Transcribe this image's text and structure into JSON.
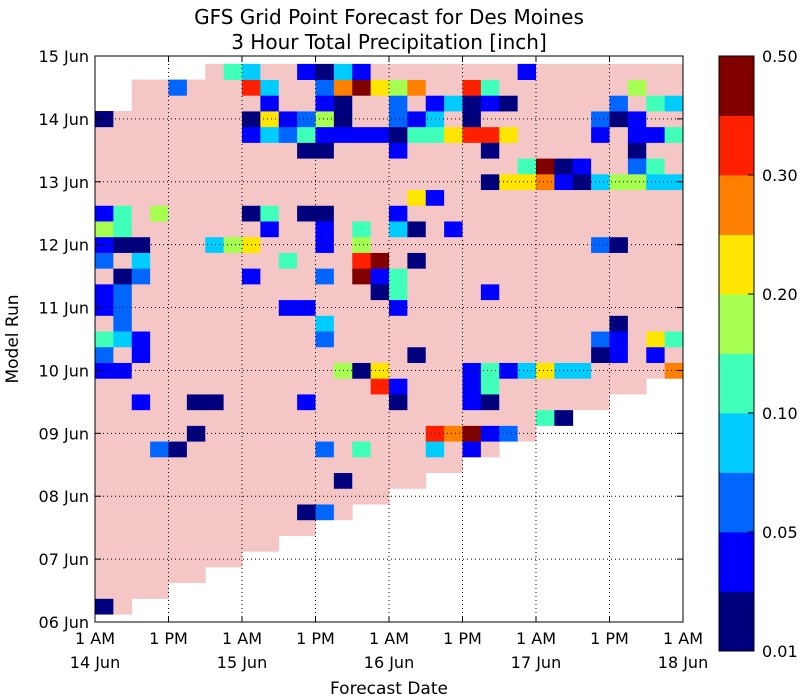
{
  "chart_data": {
    "type": "heatmap",
    "title": "GFS Grid Point Forecast for Des Moines",
    "subtitle": "3 Hour Total Precipitation [inch]",
    "x_label": "Forecast Date",
    "y_label": "Model Run",
    "xlim": [
      0,
      96
    ],
    "xticks": [
      {
        "value": 0,
        "label": "1 AM"
      },
      {
        "value": 12,
        "label": "1 PM"
      },
      {
        "value": 24,
        "label": "1 AM"
      },
      {
        "value": 36,
        "label": "1 PM"
      },
      {
        "value": 48,
        "label": "1 AM"
      },
      {
        "value": 60,
        "label": "1 PM"
      },
      {
        "value": 72,
        "label": "1 AM"
      },
      {
        "value": 84,
        "label": "1 PM"
      },
      {
        "value": 96,
        "label": "1 AM"
      }
    ],
    "x_date_labels": [
      {
        "value": 0,
        "label": "14 Jun"
      },
      {
        "value": 24,
        "label": "15 Jun"
      },
      {
        "value": 48,
        "label": "16 Jun"
      },
      {
        "value": 72,
        "label": "17 Jun"
      },
      {
        "value": 96,
        "label": "18 Jun"
      }
    ],
    "ylim": [
      0,
      9
    ],
    "yticks": [
      {
        "value": 0,
        "label": "06 Jun"
      },
      {
        "value": 1,
        "label": "07 Jun"
      },
      {
        "value": 2,
        "label": "08 Jun"
      },
      {
        "value": 3,
        "label": "09 Jun"
      },
      {
        "value": 4,
        "label": "10 Jun"
      },
      {
        "value": 5,
        "label": "11 Jun"
      },
      {
        "value": 6,
        "label": "12 Jun"
      },
      {
        "value": 7,
        "label": "13 Jun"
      },
      {
        "value": 8,
        "label": "14 Jun"
      },
      {
        "value": 9,
        "label": "15 Jun"
      }
    ],
    "grid": true,
    "x": [
      1.5,
      4.5,
      7.5,
      10.5,
      13.5,
      16.5,
      19.5,
      22.5,
      25.5,
      28.5,
      31.5,
      34.5,
      37.5,
      40.5,
      43.5,
      46.5,
      49.5,
      52.5,
      55.5,
      58.5,
      61.5,
      64.5,
      67.5,
      70.5,
      73.5,
      76.5,
      79.5,
      82.5,
      85.5,
      88.5,
      91.5,
      94.5
    ],
    "y": [
      0.25,
      0.5,
      0.75,
      1,
      1.25,
      1.5,
      1.75,
      2,
      2.25,
      2.5,
      2.75,
      3,
      3.25,
      3.5,
      3.75,
      4,
      4.25,
      4.5,
      4.75,
      5,
      5.25,
      5.5,
      5.75,
      6,
      6.25,
      6.5,
      6.75,
      7,
      7.25,
      7.5,
      7.75,
      8,
      8.25,
      8.5,
      8.75
    ],
    "levels": [
      0.01,
      0.025,
      0.05,
      0.075,
      0.1,
      0.15,
      0.2,
      0.25,
      0.3,
      0.4,
      0.5
    ],
    "colors": [
      "#00007f",
      "#0000ff",
      "#0066ff",
      "#00ccff",
      "#40ffb8",
      "#a6ff50",
      "#ffe600",
      "#ff8000",
      "#ff2000",
      "#800000"
    ],
    "under_color": "#f5c6c6",
    "colorbar_ticks": [
      0.01,
      0.05,
      {
        "value": 0.1,
        "label": "0.10"
      },
      {
        "value": 0.2,
        "label": "0.20"
      },
      {
        "value": 0.3,
        "label": "0.30"
      },
      {
        "value": 0.5,
        "label": "0.50"
      }
    ],
    "z": [
      [
        0.015,
        0,
        null,
        null,
        null,
        null,
        null,
        null,
        null,
        null,
        null,
        null,
        null,
        null,
        null,
        null,
        null,
        null,
        null,
        null,
        null,
        null,
        null,
        null,
        null,
        null,
        null,
        null,
        null,
        null,
        null,
        null
      ],
      [
        0,
        0,
        0,
        0,
        null,
        null,
        null,
        null,
        null,
        null,
        null,
        null,
        null,
        null,
        null,
        null,
        null,
        null,
        null,
        null,
        null,
        null,
        null,
        null,
        null,
        null,
        null,
        null,
        null,
        null,
        null,
        null
      ],
      [
        0,
        0,
        0,
        0,
        0,
        0,
        null,
        null,
        null,
        null,
        null,
        null,
        null,
        null,
        null,
        null,
        null,
        null,
        null,
        null,
        null,
        null,
        null,
        null,
        null,
        null,
        null,
        null,
        null,
        null,
        null,
        null
      ],
      [
        0,
        0,
        0,
        0,
        0,
        0,
        0,
        0,
        null,
        null,
        null,
        null,
        null,
        null,
        null,
        null,
        null,
        null,
        null,
        null,
        null,
        null,
        null,
        null,
        null,
        null,
        null,
        null,
        null,
        null,
        null,
        null
      ],
      [
        0,
        0,
        0,
        0,
        0,
        0,
        0,
        0,
        0,
        0,
        null,
        null,
        null,
        null,
        null,
        null,
        null,
        null,
        null,
        null,
        null,
        null,
        null,
        null,
        null,
        null,
        null,
        null,
        null,
        null,
        null,
        null
      ],
      [
        0,
        0,
        0,
        0,
        0,
        0,
        0,
        0,
        0,
        0,
        0,
        0,
        null,
        null,
        null,
        null,
        null,
        null,
        null,
        null,
        null,
        null,
        null,
        null,
        null,
        null,
        null,
        null,
        null,
        null,
        null,
        null
      ],
      [
        0,
        0,
        0,
        0,
        0,
        0,
        0,
        0,
        0,
        0,
        0,
        0.015,
        0.06,
        0,
        null,
        null,
        null,
        null,
        null,
        null,
        null,
        null,
        null,
        null,
        null,
        null,
        null,
        null,
        null,
        null,
        null,
        null
      ],
      [
        0,
        0,
        0,
        0,
        0,
        0,
        0,
        0,
        0,
        0,
        0,
        0,
        0,
        0,
        0,
        0,
        null,
        null,
        null,
        null,
        null,
        null,
        null,
        null,
        null,
        null,
        null,
        null,
        null,
        null,
        null,
        null
      ],
      [
        0,
        0,
        0,
        0,
        0,
        0,
        0,
        0,
        0,
        0,
        0,
        0,
        0,
        0.015,
        0,
        0,
        0,
        0,
        null,
        null,
        null,
        null,
        null,
        null,
        null,
        null,
        null,
        null,
        null,
        null,
        null,
        null
      ],
      [
        0,
        0,
        0,
        0,
        0,
        0,
        0,
        0,
        0,
        0,
        0,
        0,
        0,
        0,
        0,
        0,
        0,
        0,
        0,
        0,
        null,
        null,
        null,
        null,
        null,
        null,
        null,
        null,
        null,
        null,
        null,
        null
      ],
      [
        0,
        0,
        0,
        0.06,
        0.015,
        0,
        0,
        0,
        0,
        0,
        0,
        0,
        0.06,
        0,
        0.12,
        0,
        0,
        0,
        0.09,
        0,
        0.03,
        0,
        null,
        null,
        null,
        null,
        null,
        null,
        null,
        null,
        null,
        null
      ],
      [
        0,
        0,
        0,
        0,
        0,
        0.015,
        0,
        0,
        0,
        0,
        0,
        0,
        0,
        0,
        0,
        0,
        0,
        0,
        0.35,
        0.27,
        0.45,
        0.03,
        0.06,
        0,
        null,
        null,
        null,
        null,
        null,
        null,
        null,
        null
      ],
      [
        0,
        0,
        0,
        0,
        0,
        0,
        0,
        0,
        0,
        0,
        0,
        0,
        0,
        0,
        0,
        0,
        0,
        0,
        0,
        0,
        0,
        0,
        0,
        0,
        0.12,
        0.015,
        null,
        null,
        null,
        null,
        null,
        null
      ],
      [
        0,
        0,
        0.03,
        0,
        0,
        0.015,
        0.015,
        0,
        0,
        0,
        0,
        0.03,
        0,
        0,
        0,
        0,
        0.015,
        0,
        0,
        0,
        0.03,
        0.015,
        0,
        0,
        0,
        0,
        0,
        0,
        null,
        null,
        null,
        null
      ],
      [
        0,
        0,
        0,
        0,
        0,
        0,
        0,
        0,
        0,
        0,
        0,
        0,
        0,
        0,
        0,
        0.35,
        0.03,
        0,
        0,
        0,
        0.03,
        0.12,
        0,
        0,
        0,
        0,
        0,
        0,
        0,
        0,
        null,
        null
      ],
      [
        0.03,
        0.03,
        0,
        0,
        0,
        0,
        0,
        0,
        0,
        0,
        0,
        0,
        0,
        0.17,
        0.015,
        0.22,
        0,
        0,
        0,
        0,
        0.03,
        0.12,
        0.03,
        0.09,
        0.22,
        0.09,
        0.09,
        0,
        0,
        0,
        0,
        0.27
      ],
      [
        0.06,
        0,
        0.03,
        0,
        0,
        0,
        0,
        0,
        0,
        0,
        0,
        0,
        0,
        0,
        0,
        0,
        0,
        0.015,
        0,
        0,
        0,
        0,
        0,
        0,
        0,
        0,
        0,
        0.015,
        0.03,
        0,
        0.03,
        0
      ],
      [
        0.12,
        0.09,
        0.03,
        0,
        0,
        0,
        0,
        0,
        0,
        0,
        0,
        0,
        0.06,
        0,
        0,
        0,
        0,
        0,
        0,
        0,
        0,
        0,
        0,
        0,
        0,
        0,
        0,
        0.06,
        0.03,
        0,
        0.22,
        0.12
      ],
      [
        0,
        0.06,
        0,
        0,
        0,
        0,
        0,
        0,
        0,
        0,
        0,
        0,
        0.09,
        0,
        0,
        0,
        0,
        0,
        0,
        0,
        0,
        0,
        0,
        0,
        0,
        0,
        0,
        0,
        0.015,
        0,
        0,
        0
      ],
      [
        0.03,
        0.06,
        0,
        0,
        0,
        0,
        0,
        0,
        0,
        0,
        0.03,
        0.03,
        0,
        0,
        0,
        0,
        0.03,
        0,
        0,
        0,
        0,
        0,
        0,
        0,
        0,
        0,
        0,
        0,
        0,
        0,
        0,
        0
      ],
      [
        0.03,
        0.06,
        0,
        0,
        0,
        0,
        0,
        0,
        0,
        0,
        0,
        0,
        0,
        0,
        0,
        0.015,
        0.12,
        0,
        0,
        0,
        0,
        0.03,
        0,
        0,
        0,
        0,
        0,
        0,
        0,
        0,
        0,
        0
      ],
      [
        0,
        0.015,
        0.06,
        0,
        0,
        0,
        0,
        0,
        0.03,
        0,
        0,
        0,
        0.06,
        0,
        0.45,
        0.03,
        0.12,
        0,
        0,
        0,
        0,
        0,
        0,
        0,
        0,
        0,
        0,
        0,
        0,
        0,
        0,
        0
      ],
      [
        0.06,
        0,
        0.09,
        0,
        0,
        0,
        0,
        0,
        0,
        0,
        0.12,
        0,
        0,
        0,
        0.35,
        0.45,
        0,
        0.015,
        0,
        0,
        0,
        0,
        0,
        0,
        0,
        0,
        0,
        0,
        0,
        0,
        0,
        0
      ],
      [
        0.03,
        0.015,
        0.015,
        0,
        0,
        0,
        0.09,
        0.17,
        0.22,
        0,
        0,
        0,
        0.03,
        0,
        0.17,
        0,
        0,
        0,
        0,
        0,
        0,
        0,
        0,
        0,
        0,
        0,
        0,
        0.06,
        0.015,
        0,
        0,
        0
      ],
      [
        0.17,
        0.12,
        0,
        0,
        0,
        0,
        0,
        0,
        0,
        0.03,
        0,
        0,
        0.03,
        0,
        0.12,
        0,
        0.09,
        0.015,
        0,
        0.03,
        0,
        0,
        0,
        0,
        0,
        0,
        0,
        0,
        0,
        0,
        0,
        0
      ],
      [
        0.03,
        0.12,
        0,
        0.17,
        0,
        0,
        0,
        0,
        0.015,
        0.12,
        0,
        0.015,
        0.015,
        0,
        0,
        0,
        0.03,
        0,
        0,
        0,
        0,
        0,
        0,
        0,
        0,
        0,
        0,
        0,
        0,
        0,
        0,
        0
      ],
      [
        0,
        0,
        0,
        0,
        0,
        0,
        0,
        0,
        0,
        0,
        0,
        0,
        0,
        0,
        0,
        0,
        0,
        0.22,
        0.03,
        0,
        0,
        0,
        0,
        0,
        0,
        0,
        0,
        0,
        0,
        0,
        0,
        0
      ],
      [
        0,
        0,
        0,
        0,
        0,
        0,
        0,
        0,
        0,
        0,
        0,
        0,
        0,
        0,
        0,
        0,
        0,
        0,
        0,
        0,
        0,
        0.015,
        0.22,
        0.22,
        0.27,
        0.03,
        0.015,
        0.09,
        0.17,
        0.17,
        0.09,
        0.09
      ],
      [
        0,
        0,
        0,
        0,
        0,
        0,
        0,
        0,
        0,
        0,
        0,
        0,
        0,
        0,
        0,
        0,
        0,
        0,
        0,
        0,
        0,
        0,
        0,
        0.12,
        0.45,
        0.015,
        0.03,
        0,
        0,
        0.06,
        0.12,
        0
      ],
      [
        0,
        0,
        0,
        0,
        0,
        0,
        0,
        0,
        0,
        0,
        0,
        0.015,
        0.015,
        0,
        0,
        0,
        0.03,
        0,
        0,
        0,
        0,
        0.015,
        0,
        0,
        0,
        0,
        0,
        0,
        0,
        0.015,
        0,
        0
      ],
      [
        0,
        0,
        0,
        0,
        0,
        0,
        0,
        0,
        0.03,
        0.09,
        0.06,
        0.12,
        0.03,
        0.03,
        0.03,
        0.03,
        0.015,
        0.12,
        0.12,
        0.22,
        0.35,
        0.35,
        0.22,
        0,
        0,
        0,
        0,
        0.03,
        0,
        0.03,
        0.03,
        0.12
      ],
      [
        0.015,
        0,
        0,
        0,
        0,
        0,
        0,
        0,
        0.015,
        0.22,
        0.03,
        0.06,
        0.17,
        0.015,
        0,
        0,
        0.06,
        0.03,
        0.09,
        0,
        0.015,
        0,
        0,
        0,
        0,
        0,
        0,
        0.06,
        0.015,
        0.03,
        0,
        0
      ],
      [
        null,
        null,
        0,
        0,
        0,
        0,
        0,
        0,
        0,
        0.03,
        0,
        0,
        0.03,
        0.015,
        0,
        0,
        0.06,
        0,
        0.03,
        0.09,
        0.015,
        0.03,
        0.015,
        0,
        0,
        0,
        0,
        0,
        0.06,
        0,
        0.12,
        0.09
      ],
      [
        null,
        null,
        0,
        0,
        0.06,
        0,
        0,
        0,
        0.35,
        0.09,
        0,
        0,
        0.06,
        0.27,
        0.45,
        0.22,
        0.17,
        0.27,
        0,
        0,
        0.35,
        0.12,
        0,
        0,
        0,
        0,
        0,
        0,
        0,
        0.17,
        0,
        0
      ],
      [
        null,
        null,
        null,
        null,
        null,
        null,
        0,
        0.12,
        0.09,
        0,
        0,
        0.03,
        0.015,
        0.09,
        0.03,
        0,
        0,
        0,
        0,
        0,
        0,
        0,
        0,
        0.03,
        0,
        0,
        0,
        0,
        0,
        0,
        0,
        0
      ]
    ]
  }
}
